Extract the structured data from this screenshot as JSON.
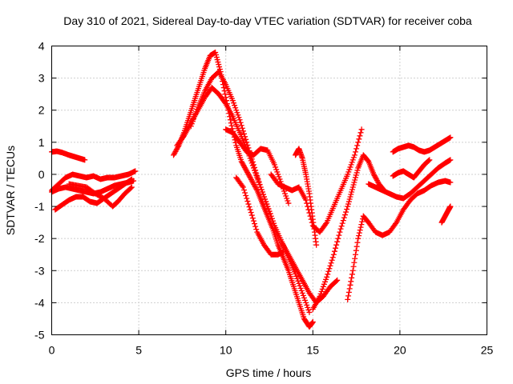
{
  "chart_data": {
    "type": "scatter",
    "title": "Day 310 of 2021, Sidereal Day-to-day VTEC variation (SDTVAR) for receiver coba",
    "xlabel": "GPS time / hours",
    "ylabel": "SDTVAR / TECUs",
    "xlim": [
      0,
      25
    ],
    "ylim": [
      -5,
      4
    ],
    "xticks": [
      0,
      5,
      10,
      15,
      20,
      25
    ],
    "yticks": [
      -5,
      -4,
      -3,
      -2,
      -1,
      0,
      1,
      2,
      3,
      4
    ],
    "grid": true,
    "marker": "+",
    "color": "#ff0000",
    "series": [
      {
        "x": [
          0.0,
          0.3,
          0.6,
          1.0,
          1.3,
          1.6,
          1.9
        ],
        "y": [
          0.7,
          0.72,
          0.68,
          0.6,
          0.55,
          0.5,
          0.45
        ]
      },
      {
        "x": [
          0.0,
          0.4,
          0.8,
          1.2,
          1.6,
          2.0,
          2.4,
          2.8,
          3.2,
          3.6,
          4.0,
          4.4,
          4.8
        ],
        "y": [
          -0.5,
          -0.3,
          -0.1,
          0.0,
          -0.05,
          -0.1,
          -0.05,
          -0.15,
          -0.1,
          -0.1,
          -0.05,
          0.0,
          0.1
        ]
      },
      {
        "x": [
          0.2,
          0.6,
          1.0,
          1.4,
          1.8,
          2.2,
          2.6,
          3.0,
          3.4,
          3.8,
          4.2,
          4.6
        ],
        "y": [
          -1.1,
          -0.95,
          -0.8,
          -0.7,
          -0.7,
          -0.85,
          -0.9,
          -0.75,
          -0.6,
          -0.45,
          -0.3,
          -0.15
        ]
      },
      {
        "x": [
          0.0,
          0.4,
          0.8,
          1.2,
          1.6,
          2.0,
          2.4,
          2.8,
          3.2,
          3.6,
          4.0,
          4.4,
          4.7
        ],
        "y": [
          -0.55,
          -0.45,
          -0.4,
          -0.45,
          -0.5,
          -0.55,
          -0.6,
          -0.55,
          -0.45,
          -0.35,
          -0.3,
          -0.25,
          -0.2
        ]
      },
      {
        "x": [
          1.0,
          1.5,
          2.0,
          2.5,
          3.0,
          3.5,
          3.8,
          4.2,
          4.6
        ],
        "y": [
          -0.3,
          -0.35,
          -0.4,
          -0.6,
          -0.75,
          -1.0,
          -0.85,
          -0.6,
          -0.4
        ]
      },
      {
        "x": [
          7.0,
          7.3,
          7.6,
          7.9,
          8.2,
          8.5,
          8.8,
          9.1,
          9.4,
          9.7,
          10.0,
          10.3,
          10.6,
          10.9,
          11.2,
          11.5,
          11.8,
          12.1,
          12.4,
          12.7,
          13.0,
          13.3,
          13.6,
          13.9,
          14.2,
          14.5,
          14.8,
          15.0
        ],
        "y": [
          0.6,
          0.9,
          1.3,
          1.8,
          2.3,
          2.8,
          3.3,
          3.7,
          3.8,
          3.2,
          2.4,
          1.6,
          0.9,
          0.4,
          0.1,
          -0.2,
          -0.5,
          -0.9,
          -1.3,
          -1.7,
          -2.2,
          -2.6,
          -3.0,
          -3.5,
          -4.0,
          -4.5,
          -4.75,
          -4.6
        ]
      },
      {
        "x": [
          7.2,
          7.6,
          8.0,
          8.4,
          8.8,
          9.2,
          9.6,
          10.0,
          10.4,
          10.8,
          11.2,
          11.6,
          12.0,
          12.4,
          12.8,
          13.2,
          13.6,
          14.0,
          14.4,
          14.8,
          15.2,
          15.6,
          16.0,
          16.4
        ],
        "y": [
          0.9,
          1.2,
          1.6,
          2.0,
          2.4,
          2.7,
          2.5,
          2.2,
          1.8,
          1.3,
          0.8,
          0.2,
          -0.4,
          -1.0,
          -1.6,
          -2.1,
          -2.5,
          -2.9,
          -3.3,
          -3.7,
          -4.0,
          -3.8,
          -3.5,
          -3.3
        ]
      },
      {
        "x": [
          8.0,
          8.4,
          8.8,
          9.2,
          9.6,
          10.0,
          10.4,
          10.8,
          11.2,
          11.6,
          12.0,
          12.4,
          12.8,
          13.2,
          13.6,
          14.0,
          14.4,
          14.8
        ],
        "y": [
          1.5,
          2.1,
          2.6,
          3.0,
          3.2,
          2.8,
          2.3,
          1.7,
          1.0,
          0.3,
          -0.4,
          -1.0,
          -1.6,
          -2.1,
          -2.6,
          -3.1,
          -3.7,
          -4.3
        ]
      },
      {
        "x": [
          10.0,
          10.4,
          10.8,
          11.2,
          11.6,
          12.0,
          12.4,
          12.8,
          13.2,
          13.6
        ],
        "y": [
          1.4,
          1.3,
          1.0,
          0.7,
          0.6,
          0.8,
          0.75,
          0.3,
          -0.3,
          -0.9
        ]
      },
      {
        "x": [
          10.6,
          11.0,
          11.4,
          11.8,
          12.2,
          12.6,
          13.0,
          13.3
        ],
        "y": [
          -0.1,
          -0.4,
          -1.1,
          -1.8,
          -2.2,
          -2.5,
          -2.5,
          -2.4
        ]
      },
      {
        "x": [
          12.6,
          13.0,
          13.4,
          13.8,
          14.2,
          14.6,
          15.0,
          15.4,
          15.8,
          16.2,
          16.6,
          17.0,
          17.4,
          17.8
        ],
        "y": [
          0.0,
          -0.3,
          -0.4,
          -0.5,
          -0.4,
          -0.8,
          -1.6,
          -1.8,
          -1.5,
          -1.0,
          -0.5,
          0.0,
          0.6,
          1.4
        ]
      },
      {
        "x": [
          14.0,
          14.2,
          14.4,
          14.6,
          14.8,
          15.0,
          15.2
        ],
        "y": [
          0.6,
          0.8,
          0.5,
          0.0,
          -0.6,
          -1.4,
          -2.2
        ]
      },
      {
        "x": [
          15.0,
          15.4,
          15.8,
          16.2,
          16.6,
          17.0,
          17.3,
          17.6,
          17.9,
          18.2,
          18.5,
          18.8,
          19.1
        ],
        "y": [
          -4.2,
          -3.8,
          -3.2,
          -2.5,
          -1.7,
          -1.0,
          -0.4,
          0.2,
          0.6,
          0.4,
          0.0,
          -0.3,
          -0.5
        ]
      },
      {
        "x": [
          17.0,
          17.3,
          17.6,
          17.9,
          18.2,
          18.6,
          19.0,
          19.4,
          19.8,
          20.2,
          20.6,
          21.0,
          21.4,
          21.8,
          22.2,
          22.6,
          22.9
        ],
        "y": [
          -3.9,
          -3.0,
          -2.0,
          -1.3,
          -1.5,
          -1.8,
          -1.9,
          -1.8,
          -1.5,
          -1.1,
          -0.8,
          -0.6,
          -0.5,
          -0.35,
          -0.25,
          -0.2,
          -0.25
        ]
      },
      {
        "x": [
          18.2,
          18.6,
          19.0,
          19.4,
          19.8,
          20.2,
          20.6,
          21.0,
          21.4,
          21.8,
          22.2,
          22.6,
          22.9
        ],
        "y": [
          -0.3,
          -0.4,
          -0.5,
          -0.6,
          -0.7,
          -0.75,
          -0.6,
          -0.4,
          -0.2,
          0.0,
          0.2,
          0.35,
          0.45
        ]
      },
      {
        "x": [
          19.6,
          19.9,
          20.2,
          20.5,
          20.8,
          21.1,
          21.4,
          21.7,
          22.0,
          22.3,
          22.6,
          22.9
        ],
        "y": [
          0.7,
          0.8,
          0.85,
          0.9,
          0.85,
          0.75,
          0.7,
          0.75,
          0.85,
          0.95,
          1.05,
          1.15
        ]
      },
      {
        "x": [
          19.6,
          19.9,
          20.2,
          20.5,
          20.8,
          21.1,
          21.4,
          21.7
        ],
        "y": [
          -0.05,
          0.05,
          0.1,
          0.0,
          -0.1,
          0.1,
          0.3,
          0.45
        ]
      },
      {
        "x": [
          22.4,
          22.6,
          22.8,
          22.9
        ],
        "y": [
          -1.5,
          -1.3,
          -1.1,
          -1.0
        ]
      }
    ]
  }
}
